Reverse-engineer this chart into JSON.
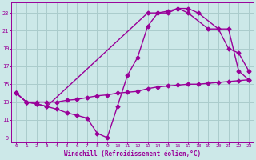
{
  "background_color": "#cce8e8",
  "grid_color": "#aacccc",
  "line_color": "#990099",
  "marker": "D",
  "marker_size": 2.5,
  "line_width": 1.0,
  "xlabel": "Windchill (Refroidissement éolien,°C)",
  "xlim": [
    -0.5,
    23.5
  ],
  "ylim": [
    8.5,
    24.2
  ],
  "xticks": [
    0,
    1,
    2,
    3,
    4,
    5,
    6,
    7,
    8,
    9,
    10,
    11,
    12,
    13,
    14,
    15,
    16,
    17,
    18,
    19,
    20,
    21,
    22,
    23
  ],
  "yticks": [
    9,
    11,
    13,
    15,
    17,
    19,
    21,
    23
  ],
  "series": [
    {
      "x": [
        0,
        1,
        2,
        3,
        4,
        5,
        6,
        7,
        8,
        9,
        10,
        11,
        12,
        13,
        14,
        15,
        16,
        17,
        18,
        19,
        20,
        21,
        22,
        23
      ],
      "y": [
        14.0,
        13.0,
        13.0,
        13.0,
        13.0,
        13.2,
        13.3,
        13.5,
        13.7,
        13.8,
        14.0,
        14.1,
        14.2,
        14.5,
        14.7,
        14.8,
        14.9,
        15.0,
        15.0,
        15.1,
        15.2,
        15.3,
        15.4,
        15.5
      ]
    },
    {
      "x": [
        0,
        1,
        2,
        3,
        4,
        5,
        6,
        7,
        8,
        9,
        10,
        11,
        12,
        13,
        14,
        15,
        16,
        17,
        18,
        20,
        21,
        22,
        23
      ],
      "y": [
        14.0,
        13.0,
        12.8,
        12.5,
        12.2,
        11.8,
        11.5,
        11.2,
        9.5,
        9.0,
        12.5,
        16.0,
        18.0,
        21.5,
        23.0,
        23.0,
        23.5,
        23.5,
        23.0,
        21.2,
        19.0,
        18.5,
        16.5
      ]
    },
    {
      "x": [
        0,
        1,
        2,
        3,
        13,
        14,
        15,
        16,
        17,
        19,
        20,
        21,
        22,
        23
      ],
      "y": [
        14.0,
        13.0,
        12.8,
        12.5,
        23.0,
        23.0,
        23.2,
        23.5,
        23.0,
        21.2,
        21.2,
        21.2,
        16.5,
        15.5
      ]
    }
  ]
}
